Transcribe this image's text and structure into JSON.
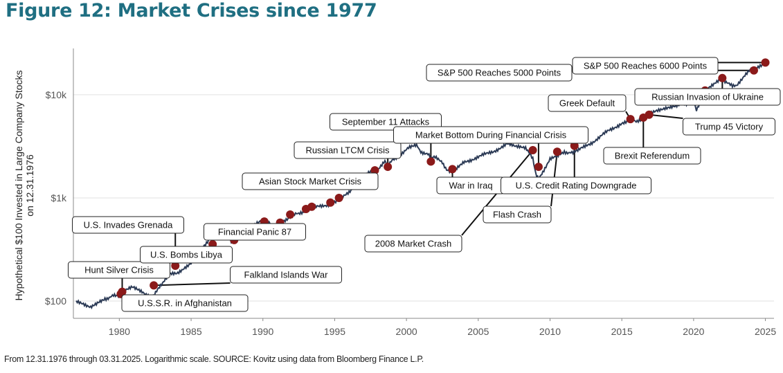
{
  "title": "Figure 12: Market Crises since 1977",
  "footer": "From 12.31.1976 through 03.31.2025. Logarithmic scale. SOURCE: Kovitz using data from Bloomberg Finance L.P.",
  "colors": {
    "title": "#1f6f82",
    "line": "#2b3a55",
    "marker": "#8b1a1a",
    "grid": "#e2e2e2"
  },
  "chart_data": {
    "type": "line",
    "scale": "log",
    "ylabel_line1": "Hypothetical $100 Invested in Large Company Stocks",
    "ylabel_line2": "on 12.31.1976",
    "x_ticks": [
      1980,
      1985,
      1990,
      1995,
      2000,
      2005,
      2010,
      2015,
      2020,
      2025
    ],
    "y_ticks": [
      {
        "value": 100,
        "label": "$100"
      },
      {
        "value": 1000,
        "label": "$1k"
      },
      {
        "value": 10000,
        "label": "$10k"
      }
    ],
    "xlim": [
      1976.8,
      2025.6
    ],
    "ylim": [
      68,
      26000
    ],
    "grid": "horizontal",
    "series": [
      {
        "x": [
          1977.0,
          1977.5,
          1978.0,
          1978.2,
          1978.6,
          1979.0,
          1979.6,
          1980.0,
          1980.2,
          1980.9,
          1981.3,
          1981.8,
          1982.3,
          1982.6,
          1983.0,
          1983.5,
          1984.0,
          1984.5,
          1985.0,
          1985.5,
          1986.0,
          1986.5,
          1987.0,
          1987.6,
          1987.8,
          1988.0,
          1989.0,
          1989.6,
          1990.0,
          1990.5,
          1990.8,
          1991.2,
          1991.9,
          1992.5,
          1993.0,
          1993.5,
          1994.0,
          1994.5,
          1995.0,
          1995.5,
          1996.0,
          1996.5,
          1997.0,
          1997.5,
          1998.0,
          1998.5,
          1998.7,
          1999.0,
          1999.5,
          2000.0,
          2000.3,
          2000.7,
          2001.0,
          2001.5,
          2001.7,
          2002.0,
          2002.5,
          2002.8,
          2003.0,
          2003.3,
          2004.0,
          2005.0,
          2006.0,
          2007.0,
          2007.8,
          2008.3,
          2008.8,
          2009.0,
          2009.2,
          2009.5,
          2010.0,
          2010.5,
          2011.0,
          2011.6,
          2012.0,
          2013.0,
          2014.0,
          2015.0,
          2015.7,
          2016.0,
          2016.5,
          2017.0,
          2018.0,
          2018.9,
          2019.5,
          2020.0,
          2020.2,
          2020.8,
          2021.0,
          2021.9,
          2022.7,
          2023.0,
          2023.5,
          2024.0,
          2024.2,
          2025.0
        ],
        "y": [
          98,
          95,
          88,
          92,
          100,
          105,
          112,
          110,
          122,
          135,
          128,
          115,
          110,
          125,
          150,
          180,
          185,
          210,
          230,
          300,
          360,
          440,
          490,
          430,
          370,
          390,
          500,
          560,
          600,
          560,
          510,
          570,
          660,
          710,
          760,
          800,
          830,
          860,
          900,
          1000,
          1150,
          1350,
          1600,
          1800,
          1900,
          2250,
          2000,
          2300,
          2600,
          2950,
          3100,
          3200,
          2800,
          2700,
          2500,
          2450,
          2200,
          1900,
          1850,
          1800,
          2200,
          2500,
          2800,
          3300,
          3200,
          3000,
          2400,
          1700,
          1500,
          1800,
          2400,
          2500,
          2800,
          2700,
          2900,
          3500,
          4400,
          5300,
          5600,
          5500,
          6000,
          6500,
          7500,
          8000,
          8200,
          8800,
          7200,
          10000,
          11500,
          14500,
          12000,
          12500,
          15000,
          17500,
          17000,
          21000
        ]
      }
    ],
    "markers": [
      {
        "x": 1980.1,
        "y": 117
      },
      {
        "x": 1980.2,
        "y": 123
      },
      {
        "x": 1982.4,
        "y": 142
      },
      {
        "x": 1983.9,
        "y": 220
      },
      {
        "x": 1986.5,
        "y": 355
      },
      {
        "x": 1988.0,
        "y": 390
      },
      {
        "x": 1990.1,
        "y": 590
      },
      {
        "x": 1991.2,
        "y": 575
      },
      {
        "x": 1991.9,
        "y": 690
      },
      {
        "x": 1993.0,
        "y": 780
      },
      {
        "x": 1993.4,
        "y": 820
      },
      {
        "x": 1994.7,
        "y": 900
      },
      {
        "x": 1995.3,
        "y": 1000
      },
      {
        "x": 1997.8,
        "y": 1850
      },
      {
        "x": 1998.7,
        "y": 2000
      },
      {
        "x": 2001.7,
        "y": 2250
      },
      {
        "x": 2003.2,
        "y": 1900
      },
      {
        "x": 2008.8,
        "y": 2900
      },
      {
        "x": 2009.2,
        "y": 2000
      },
      {
        "x": 2010.5,
        "y": 2800
      },
      {
        "x": 2011.7,
        "y": 3200
      },
      {
        "x": 2015.6,
        "y": 5800
      },
      {
        "x": 2016.5,
        "y": 6000
      },
      {
        "x": 2016.9,
        "y": 6400
      },
      {
        "x": 2020.8,
        "y": 11000
      },
      {
        "x": 2022.0,
        "y": 14500
      },
      {
        "x": 2024.2,
        "y": 17200
      },
      {
        "x": 2025.0,
        "y": 20500
      }
    ],
    "annotations": [
      {
        "label": "U.S. Invades Grenada",
        "mark_x": 1983.9,
        "mark_y": 220
      },
      {
        "label": "Hunt Silver Crisis",
        "mark_x": 1980.2,
        "mark_y": 123
      },
      {
        "label": "U.S. Bombs Libya",
        "mark_x": 1986.5,
        "mark_y": 355
      },
      {
        "label": "U.S.S.R. in Afghanistan",
        "mark_x": 1980.1,
        "mark_y": 117
      },
      {
        "label": "Financial Panic 87",
        "mark_x": 1988.0,
        "mark_y": 390
      },
      {
        "label": "Falkland Islands War",
        "mark_x": 1982.4,
        "mark_y": 142
      },
      {
        "label": "Asian Stock Market Crisis",
        "mark_x": 1997.8,
        "mark_y": 1850
      },
      {
        "label": "Russian LTCM Crisis",
        "mark_x": 1998.7,
        "mark_y": 2000
      },
      {
        "label": "September 11 Attacks",
        "mark_x": 2001.7,
        "mark_y": 2250
      },
      {
        "label": "War in Iraq",
        "mark_x": 2003.2,
        "mark_y": 1900
      },
      {
        "label": "2008 Market Crash",
        "mark_x": 2008.8,
        "mark_y": 2900
      },
      {
        "label": "Market Bottom During Financial Crisis",
        "mark_x": 2009.2,
        "mark_y": 2000
      },
      {
        "label": "Flash Crash",
        "mark_x": 2010.5,
        "mark_y": 2800
      },
      {
        "label": "U.S. Credit Rating Downgrade",
        "mark_x": 2011.7,
        "mark_y": 3200
      },
      {
        "label": "Greek Default",
        "mark_x": 2015.6,
        "mark_y": 5800
      },
      {
        "label": "Brexit Referendum",
        "mark_x": 2016.5,
        "mark_y": 6000
      },
      {
        "label": "Trump 45 Victory",
        "mark_x": 2016.9,
        "mark_y": 6400
      },
      {
        "label": "Russian Invasion of Ukraine",
        "mark_x": 2022.0,
        "mark_y": 14500
      },
      {
        "label": "S&P 500 Reaches 5000 Points",
        "mark_x": 2024.2,
        "mark_y": 17200
      },
      {
        "label": "S&P 500 Reaches 6000 Points",
        "mark_x": 2025.0,
        "mark_y": 20500
      }
    ]
  }
}
